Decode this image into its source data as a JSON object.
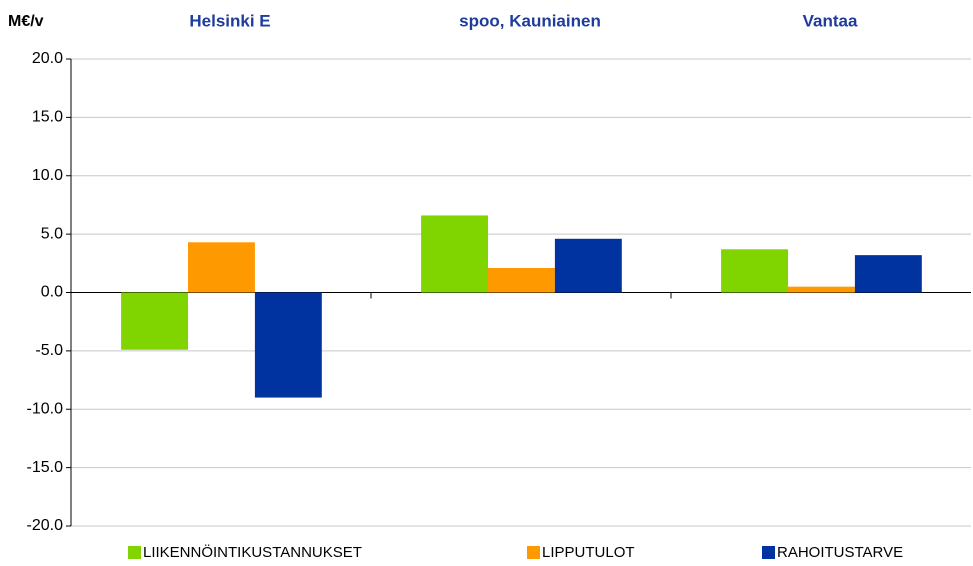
{
  "chart_data": {
    "type": "bar",
    "y_label": "M€/v",
    "categories": [
      "Helsinki E",
      "spoo, Kauniainen",
      "Vantaa"
    ],
    "series": [
      {
        "name": "LIIKENNÖINTIKUSTANNUKSET",
        "color": "#80d400",
        "values": [
          -4.9,
          6.6,
          3.7
        ]
      },
      {
        "name": "LIPPUTULOT",
        "color": "#ff9900",
        "values": [
          4.3,
          2.1,
          0.5
        ]
      },
      {
        "name": "RAHOITUSTARVE",
        "color": "#0033a0",
        "values": [
          -9.0,
          4.6,
          3.2
        ]
      }
    ],
    "ylim": [
      -20,
      20
    ],
    "yticks": [
      {
        "value": -20,
        "label": "-20.0"
      },
      {
        "value": -15,
        "label": "-15.0"
      },
      {
        "value": -10,
        "label": "-10.0"
      },
      {
        "value": -5,
        "label": "-5.0"
      },
      {
        "value": 0,
        "label": "0.0"
      },
      {
        "value": 5,
        "label": "5.0"
      },
      {
        "value": 10,
        "label": "10.0"
      },
      {
        "value": 15,
        "label": "15.0"
      },
      {
        "value": 20,
        "label": "20.0"
      }
    ],
    "grid": true,
    "legend": "bottom"
  }
}
